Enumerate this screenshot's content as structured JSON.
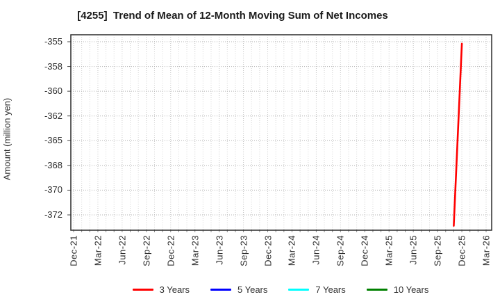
{
  "chart_data": {
    "type": "line",
    "title": "[4255]  Trend of Mean of 12-Month Moving Sum of Net Incomes",
    "ylabel": "Amount (million yen)",
    "grid": "dotted",
    "legend_position": "bottom",
    "x_axis": {
      "unit": "months-since-Dec-2021",
      "tick_labels": [
        "Dec-21",
        "Mar-22",
        "Jun-22",
        "Sep-22",
        "Dec-22",
        "Mar-23",
        "Jun-23",
        "Sep-23",
        "Dec-23",
        "Mar-24",
        "Jun-24",
        "Sep-24",
        "Dec-24",
        "Mar-25",
        "Jun-25",
        "Sep-25",
        "Dec-25",
        "Mar-26"
      ],
      "tick_months": [
        0,
        3,
        6,
        9,
        12,
        15,
        18,
        21,
        24,
        27,
        30,
        33,
        36,
        39,
        42,
        45,
        48,
        51
      ],
      "minor_grid_every_month": true
    },
    "y_axis": {
      "tick_values": [
        -355,
        -357.5,
        -360,
        -362.5,
        -365,
        -367.5,
        -370,
        -372.5
      ],
      "tick_labels": [
        "-355",
        "-358",
        "-360",
        "-362",
        "-365",
        "-368",
        "-370",
        "-372"
      ],
      "range": [
        -373.9,
        -354.3
      ]
    },
    "series": [
      {
        "name": "3 Years",
        "color": "#ff0000",
        "points": [
          {
            "label": "Nov-25",
            "month": 47,
            "value": -373.6
          },
          {
            "label": "Dec-25",
            "month": 48,
            "value": -355.2
          }
        ]
      },
      {
        "name": "5 Years",
        "color": "#0000ff",
        "points": []
      },
      {
        "name": "7 Years",
        "color": "#00ffff",
        "points": []
      },
      {
        "name": "10 Years",
        "color": "#008000",
        "points": []
      }
    ],
    "colors": {
      "axis_frame": "#2b2b2b",
      "grid_major_h": "#b1b1b1",
      "grid_minor_v": "#d2d2d2",
      "grid_major_v": "#c3c3c3",
      "tick_text": "#2e2e2e"
    }
  }
}
